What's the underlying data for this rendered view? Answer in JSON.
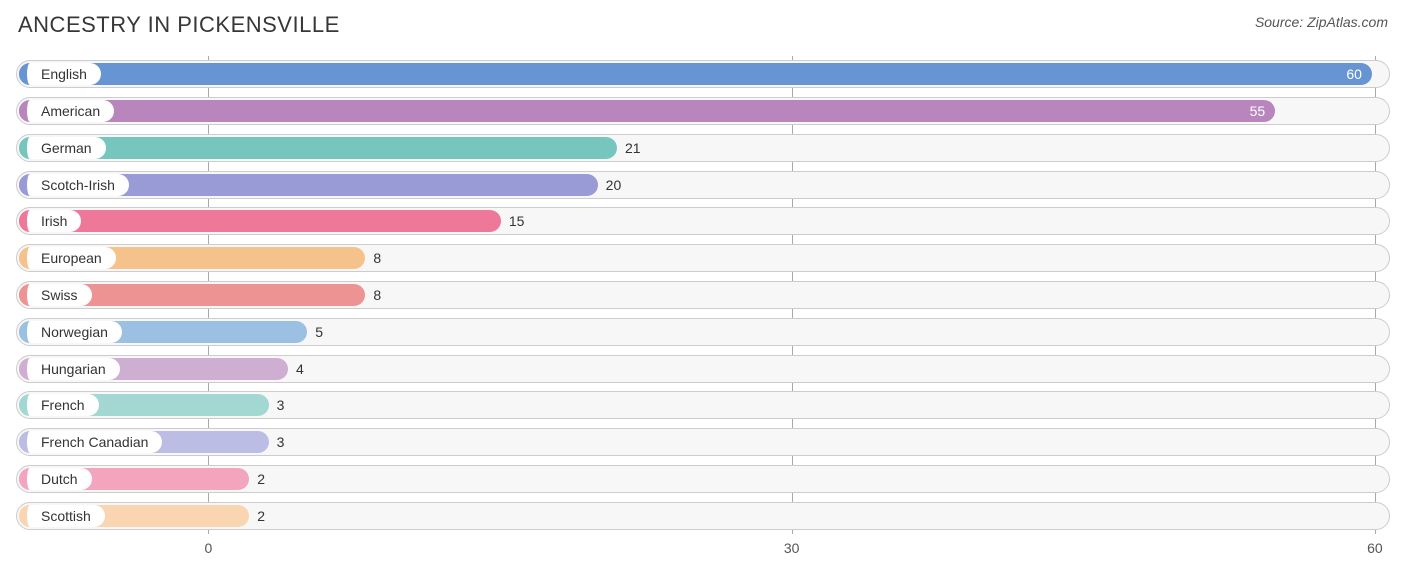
{
  "header": {
    "title": "ANCESTRY IN PICKENSVILLE",
    "source": "Source: ZipAtlas.com"
  },
  "chart": {
    "type": "bar",
    "orientation": "horizontal",
    "track_bg": "#f7f7f7",
    "track_border": "#cccccc",
    "grid_color": "#a9a9a9",
    "label_pill_bg": "#ffffff",
    "label_fontsize": 14,
    "value_fontsize": 14,
    "value_color_outside": "#333333",
    "value_color_inside": "#ffffff",
    "x_axis": {
      "ticks": [
        0,
        30,
        60
      ],
      "min_offset_pct": 14.0,
      "scale_pct_per_unit": 1.415
    },
    "series": [
      {
        "label": "English",
        "value": 60,
        "color": "#6794d2",
        "value_inside": true
      },
      {
        "label": "American",
        "value": 55,
        "color": "#b886bd",
        "value_inside": true
      },
      {
        "label": "German",
        "value": 21,
        "color": "#76c6be",
        "value_inside": false
      },
      {
        "label": "Scotch-Irish",
        "value": 20,
        "color": "#989bd6",
        "value_inside": false
      },
      {
        "label": "Irish",
        "value": 15,
        "color": "#ed789a",
        "value_inside": false
      },
      {
        "label": "European",
        "value": 8,
        "color": "#f6c28b",
        "value_inside": false
      },
      {
        "label": "Swiss",
        "value": 8,
        "color": "#ee9394",
        "value_inside": false
      },
      {
        "label": "Norwegian",
        "value": 5,
        "color": "#9cc0e2",
        "value_inside": false
      },
      {
        "label": "Hungarian",
        "value": 4,
        "color": "#ceafd2",
        "value_inside": false
      },
      {
        "label": "French",
        "value": 3,
        "color": "#a3d8d2",
        "value_inside": false
      },
      {
        "label": "French Canadian",
        "value": 3,
        "color": "#bcbde4",
        "value_inside": false
      },
      {
        "label": "Dutch",
        "value": 2,
        "color": "#f3a5be",
        "value_inside": false
      },
      {
        "label": "Scottish",
        "value": 2,
        "color": "#f9d6b1",
        "value_inside": false
      }
    ]
  }
}
